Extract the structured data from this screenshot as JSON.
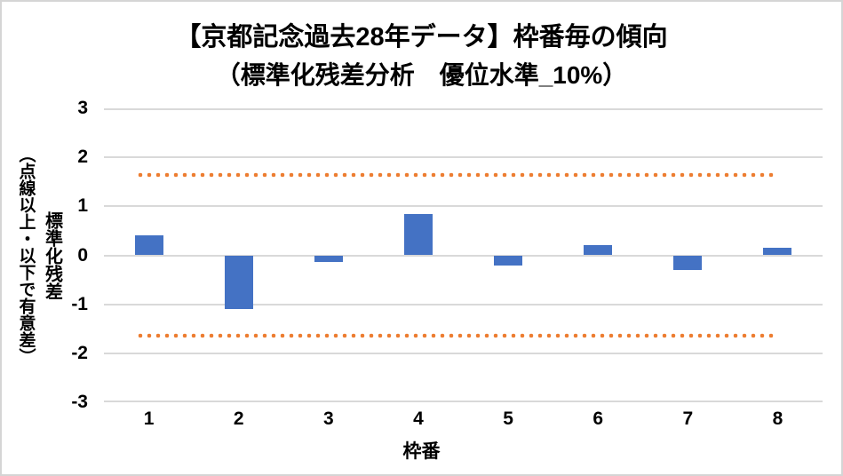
{
  "chart_data": {
    "type": "bar",
    "title": "【京都記念過去28年データ】枠番毎の傾向",
    "subtitle": "（標準化残差分析　優位水準_10%）",
    "categories": [
      "1",
      "2",
      "3",
      "4",
      "5",
      "6",
      "7",
      "8"
    ],
    "values": [
      0.4,
      -1.1,
      -0.13,
      0.85,
      -0.2,
      0.2,
      -0.3,
      0.15
    ],
    "xlabel": "枠番",
    "ylabel": "標準化残差",
    "ylabel_note": "（点線以上・以下で有意差）",
    "ylim": [
      -3,
      3
    ],
    "yticks": [
      3,
      2,
      1,
      0,
      -1,
      -2,
      -3
    ],
    "thresholds": [
      1.64,
      -1.64
    ],
    "grid": true,
    "legend": "none",
    "bar_color": "#4472C4",
    "threshold_color": "#ED7D31",
    "gridline_color": "#D9D9D9",
    "text_color": "#000000",
    "background_color": "#FFFFFF",
    "frame_border_color": "#D5D5D5"
  }
}
